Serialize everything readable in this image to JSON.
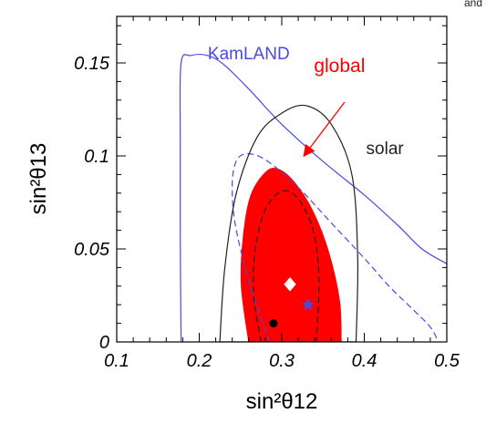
{
  "corner_text": "and",
  "chart_data": {
    "type": "contour",
    "xlabel": "sin²θ12",
    "ylabel": "sin²θ13",
    "xlim": [
      0.1,
      0.5
    ],
    "ylim": [
      0,
      0.175
    ],
    "xticks": [
      "0.1",
      "0.2",
      "0.3",
      "0.4",
      "0.5"
    ],
    "yticks": [
      "0",
      "0.05",
      "0.1",
      "0.15"
    ],
    "grid": false,
    "colors": {
      "kamland": "#4a4ae0",
      "solar": "#222222",
      "global": "#ff0000",
      "star": "#4a4ae0"
    },
    "series": [
      {
        "name": "KamLAND",
        "style": "solid",
        "points": [
          [
            0.178,
            0.0
          ],
          [
            0.177,
            0.06
          ],
          [
            0.177,
            0.11
          ],
          [
            0.178,
            0.15
          ],
          [
            0.19,
            0.154
          ],
          [
            0.21,
            0.154
          ],
          [
            0.23,
            0.149
          ],
          [
            0.26,
            0.136
          ],
          [
            0.3,
            0.117
          ],
          [
            0.35,
            0.097
          ],
          [
            0.4,
            0.079
          ],
          [
            0.44,
            0.063
          ],
          [
            0.47,
            0.05
          ],
          [
            0.5,
            0.042
          ]
        ]
      },
      {
        "name": "KamLAND",
        "style": "dashed",
        "points": [
          [
            0.285,
            0.0
          ],
          [
            0.262,
            0.03
          ],
          [
            0.245,
            0.06
          ],
          [
            0.24,
            0.08
          ],
          [
            0.243,
            0.095
          ],
          [
            0.255,
            0.101
          ],
          [
            0.28,
            0.098
          ],
          [
            0.32,
            0.083
          ],
          [
            0.36,
            0.064
          ],
          [
            0.4,
            0.045
          ],
          [
            0.43,
            0.03
          ],
          [
            0.46,
            0.017
          ],
          [
            0.48,
            0.008
          ],
          [
            0.49,
            0.0
          ]
        ]
      },
      {
        "name": "solar",
        "style": "solid",
        "closed": true,
        "points": [
          [
            0.225,
            0.0
          ],
          [
            0.231,
            0.04
          ],
          [
            0.245,
            0.08
          ],
          [
            0.27,
            0.11
          ],
          [
            0.3,
            0.123
          ],
          [
            0.33,
            0.127
          ],
          [
            0.36,
            0.117
          ],
          [
            0.385,
            0.09
          ],
          [
            0.392,
            0.045
          ],
          [
            0.39,
            0.0
          ]
        ]
      },
      {
        "name": "solar",
        "style": "dashed",
        "closed": true,
        "points": [
          [
            0.275,
            0.0
          ],
          [
            0.266,
            0.025
          ],
          [
            0.268,
            0.05
          ],
          [
            0.28,
            0.071
          ],
          [
            0.3,
            0.081
          ],
          [
            0.32,
            0.077
          ],
          [
            0.338,
            0.06
          ],
          [
            0.345,
            0.035
          ],
          [
            0.342,
            0.0
          ]
        ]
      },
      {
        "name": "global",
        "style": "filled",
        "closed": true,
        "points": [
          [
            0.26,
            0.0
          ],
          [
            0.251,
            0.03
          ],
          [
            0.253,
            0.055
          ],
          [
            0.262,
            0.078
          ],
          [
            0.28,
            0.091
          ],
          [
            0.295,
            0.093
          ],
          [
            0.315,
            0.086
          ],
          [
            0.338,
            0.07
          ],
          [
            0.357,
            0.048
          ],
          [
            0.37,
            0.022
          ],
          [
            0.372,
            0.0
          ]
        ]
      }
    ],
    "markers": [
      {
        "name": "global best fit",
        "shape": "diamond",
        "x": 0.31,
        "y": 0.031
      },
      {
        "name": "KamLAND best fit",
        "shape": "star",
        "x": 0.332,
        "y": 0.02
      },
      {
        "name": "solar best fit",
        "shape": "dot",
        "x": 0.29,
        "y": 0.01
      }
    ],
    "annotations": [
      {
        "text": "KamLAND",
        "x": 0.26,
        "y": 0.152,
        "color": "#4a4ae0"
      },
      {
        "text": "global",
        "x": 0.37,
        "y": 0.145,
        "color": "#ff0000"
      },
      {
        "text": "solar",
        "x": 0.425,
        "y": 0.101,
        "color": "#222222"
      }
    ]
  }
}
